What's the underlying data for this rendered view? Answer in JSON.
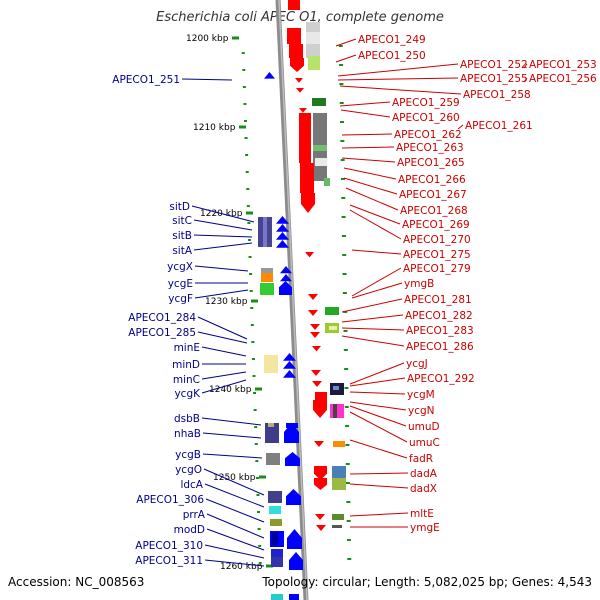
{
  "title": "Escherichia coli APEC O1, complete genome",
  "accession": "Accession: NC_008563",
  "topology": "Topology: circular; Length: 5,082,025 bp; Genes: 4,543",
  "colors": {
    "left_label": "#00008b",
    "right_label": "#cc0000",
    "forward_default": "#0000ff",
    "reverse_default": "#ff0000",
    "tick": "#1a8c1a",
    "backbone": "#8c8c8c"
  },
  "scale_ticks": [
    {
      "label": "1200 kbp"
    },
    {
      "label": "1210 kbp"
    },
    {
      "label": "1220 kbp"
    },
    {
      "label": "1230 kbp"
    },
    {
      "label": "1240 kbp"
    },
    {
      "label": "1250 kbp"
    },
    {
      "label": "1260 kbp"
    }
  ],
  "left_genes": [
    "APECO1_251",
    "sitD",
    "sitC",
    "sitB",
    "sitA",
    "ycgX",
    "ycgE",
    "ycgF",
    "APECO1_284",
    "APECO1_285",
    "minE",
    "minD",
    "minC",
    "ycgK",
    "dsbB",
    "nhaB",
    "ycgB",
    "ycgO",
    "ldcA",
    "APECO1_306",
    "prrA",
    "modD",
    "APECO1_310",
    "APECO1_311"
  ],
  "right_genes": [
    "APECO1_249",
    "APECO1_250",
    "APECO1_252",
    "APECO1_253",
    "APECO1_255",
    "APECO1_256",
    "APECO1_258",
    "APECO1_259",
    "APECO1_260",
    "APECO1_261",
    "APECO1_262",
    "APECO1_263",
    "APECO1_265",
    "APECO1_266",
    "APECO1_267",
    "APECO1_268",
    "APECO1_269",
    "APECO1_270",
    "APECO1_275",
    "APECO1_279",
    "ymgB",
    "APECO1_281",
    "APECO1_282",
    "APECO1_283",
    "APECO1_286",
    "ycgJ",
    "APECO1_292",
    "ycgM",
    "ycgN",
    "umuD",
    "umuC",
    "fadR",
    "dadA",
    "dadX",
    "mltE",
    "ymgE"
  ]
}
